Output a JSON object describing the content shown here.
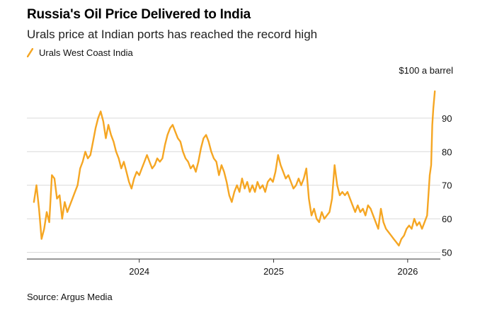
{
  "chart_data": {
    "type": "line",
    "title": "Russia's Oil Price Delivered to India",
    "subtitle": "Urals price at Indian ports has reached the record high",
    "legend": [
      {
        "name": "Urals West Coast India",
        "color": "#f5a623"
      }
    ],
    "source": "Source: Argus Media",
    "annotation": "$100 a barrel",
    "ylim": [
      48,
      102
    ],
    "yticks": [
      50,
      60,
      70,
      80,
      90
    ],
    "ytick_labels": [
      "50",
      "60",
      "70",
      "80",
      "90"
    ],
    "xlim": [
      "2023-03-01",
      "2026-03-31"
    ],
    "xticks": [
      "2024",
      "2025",
      "2026"
    ],
    "grid": true,
    "y_axis_side": "right",
    "series": [
      {
        "name": "Urals West Coast India",
        "color": "#f5a623",
        "points": [
          [
            "2023-03-20",
            65
          ],
          [
            "2023-03-27",
            70
          ],
          [
            "2023-04-03",
            63
          ],
          [
            "2023-04-10",
            54
          ],
          [
            "2023-04-17",
            57
          ],
          [
            "2023-04-24",
            62
          ],
          [
            "2023-05-01",
            59
          ],
          [
            "2023-05-08",
            73
          ],
          [
            "2023-05-15",
            72
          ],
          [
            "2023-05-22",
            66
          ],
          [
            "2023-05-29",
            67
          ],
          [
            "2023-06-05",
            60
          ],
          [
            "2023-06-12",
            65
          ],
          [
            "2023-06-19",
            62
          ],
          [
            "2023-06-26",
            64
          ],
          [
            "2023-07-03",
            66
          ],
          [
            "2023-07-10",
            68
          ],
          [
            "2023-07-17",
            70
          ],
          [
            "2023-07-24",
            75
          ],
          [
            "2023-07-31",
            77
          ],
          [
            "2023-08-07",
            80
          ],
          [
            "2023-08-14",
            78
          ],
          [
            "2023-08-21",
            79
          ],
          [
            "2023-08-28",
            83
          ],
          [
            "2023-09-04",
            87
          ],
          [
            "2023-09-11",
            90
          ],
          [
            "2023-09-18",
            92
          ],
          [
            "2023-09-25",
            89
          ],
          [
            "2023-10-02",
            84
          ],
          [
            "2023-10-09",
            88
          ],
          [
            "2023-10-16",
            85
          ],
          [
            "2023-10-23",
            83
          ],
          [
            "2023-10-30",
            80
          ],
          [
            "2023-11-06",
            78
          ],
          [
            "2023-11-13",
            75
          ],
          [
            "2023-11-20",
            77
          ],
          [
            "2023-11-27",
            74
          ],
          [
            "2023-12-04",
            71
          ],
          [
            "2023-12-11",
            69
          ],
          [
            "2023-12-18",
            72
          ],
          [
            "2023-12-25",
            74
          ],
          [
            "2024-01-01",
            73
          ],
          [
            "2024-01-08",
            75
          ],
          [
            "2024-01-15",
            77
          ],
          [
            "2024-01-22",
            79
          ],
          [
            "2024-01-29",
            77
          ],
          [
            "2024-02-05",
            75
          ],
          [
            "2024-02-12",
            76
          ],
          [
            "2024-02-19",
            78
          ],
          [
            "2024-02-26",
            77
          ],
          [
            "2024-03-04",
            78
          ],
          [
            "2024-03-11",
            82
          ],
          [
            "2024-03-18",
            85
          ],
          [
            "2024-03-25",
            87
          ],
          [
            "2024-04-01",
            88
          ],
          [
            "2024-04-08",
            86
          ],
          [
            "2024-04-15",
            84
          ],
          [
            "2024-04-22",
            83
          ],
          [
            "2024-04-29",
            80
          ],
          [
            "2024-05-06",
            78
          ],
          [
            "2024-05-13",
            77
          ],
          [
            "2024-05-20",
            75
          ],
          [
            "2024-05-27",
            76
          ],
          [
            "2024-06-03",
            74
          ],
          [
            "2024-06-10",
            77
          ],
          [
            "2024-06-17",
            81
          ],
          [
            "2024-06-24",
            84
          ],
          [
            "2024-07-01",
            85
          ],
          [
            "2024-07-08",
            83
          ],
          [
            "2024-07-15",
            80
          ],
          [
            "2024-07-22",
            78
          ],
          [
            "2024-07-29",
            77
          ],
          [
            "2024-08-05",
            73
          ],
          [
            "2024-08-12",
            76
          ],
          [
            "2024-08-19",
            74
          ],
          [
            "2024-08-26",
            71
          ],
          [
            "2024-09-02",
            67
          ],
          [
            "2024-09-09",
            65
          ],
          [
            "2024-09-16",
            68
          ],
          [
            "2024-09-23",
            70
          ],
          [
            "2024-09-30",
            68
          ],
          [
            "2024-10-07",
            72
          ],
          [
            "2024-10-14",
            69
          ],
          [
            "2024-10-21",
            71
          ],
          [
            "2024-10-28",
            68
          ],
          [
            "2024-11-04",
            70
          ],
          [
            "2024-11-11",
            68
          ],
          [
            "2024-11-18",
            71
          ],
          [
            "2024-11-25",
            69
          ],
          [
            "2024-12-02",
            70
          ],
          [
            "2024-12-09",
            68
          ],
          [
            "2024-12-16",
            71
          ],
          [
            "2024-12-23",
            72
          ],
          [
            "2024-12-30",
            71
          ],
          [
            "2025-01-06",
            74
          ],
          [
            "2025-01-13",
            79
          ],
          [
            "2025-01-20",
            76
          ],
          [
            "2025-01-27",
            74
          ],
          [
            "2025-02-03",
            72
          ],
          [
            "2025-02-10",
            73
          ],
          [
            "2025-02-17",
            71
          ],
          [
            "2025-02-24",
            69
          ],
          [
            "2025-03-03",
            70
          ],
          [
            "2025-03-10",
            72
          ],
          [
            "2025-03-17",
            70
          ],
          [
            "2025-03-24",
            72
          ],
          [
            "2025-03-31",
            75
          ],
          [
            "2025-04-07",
            66
          ],
          [
            "2025-04-14",
            61
          ],
          [
            "2025-04-21",
            63
          ],
          [
            "2025-04-28",
            60
          ],
          [
            "2025-05-05",
            59
          ],
          [
            "2025-05-12",
            62
          ],
          [
            "2025-05-19",
            60
          ],
          [
            "2025-05-26",
            61
          ],
          [
            "2025-06-02",
            62
          ],
          [
            "2025-06-09",
            66
          ],
          [
            "2025-06-16",
            76
          ],
          [
            "2025-06-23",
            70
          ],
          [
            "2025-06-30",
            67
          ],
          [
            "2025-07-07",
            68
          ],
          [
            "2025-07-14",
            67
          ],
          [
            "2025-07-21",
            68
          ],
          [
            "2025-07-28",
            66
          ],
          [
            "2025-08-04",
            64
          ],
          [
            "2025-08-11",
            62
          ],
          [
            "2025-08-18",
            64
          ],
          [
            "2025-08-25",
            62
          ],
          [
            "2025-09-01",
            63
          ],
          [
            "2025-09-08",
            61
          ],
          [
            "2025-09-15",
            64
          ],
          [
            "2025-09-22",
            63
          ],
          [
            "2025-09-29",
            61
          ],
          [
            "2025-10-06",
            59
          ],
          [
            "2025-10-13",
            57
          ],
          [
            "2025-10-20",
            63
          ],
          [
            "2025-10-27",
            59
          ],
          [
            "2025-11-03",
            57
          ],
          [
            "2025-11-10",
            56
          ],
          [
            "2025-11-17",
            55
          ],
          [
            "2025-11-24",
            54
          ],
          [
            "2025-12-01",
            53
          ],
          [
            "2025-12-08",
            52
          ],
          [
            "2025-12-15",
            54
          ],
          [
            "2025-12-22",
            55
          ],
          [
            "2025-12-29",
            57
          ],
          [
            "2026-01-05",
            58
          ],
          [
            "2026-01-12",
            57
          ],
          [
            "2026-01-19",
            60
          ],
          [
            "2026-01-26",
            58
          ],
          [
            "2026-02-02",
            59
          ],
          [
            "2026-02-09",
            57
          ],
          [
            "2026-02-16",
            59
          ],
          [
            "2026-02-23",
            61
          ],
          [
            "2026-03-02",
            73
          ],
          [
            "2026-03-06",
            76
          ],
          [
            "2026-03-09",
            88
          ],
          [
            "2026-03-12",
            93
          ],
          [
            "2026-03-16",
            98
          ]
        ]
      }
    ]
  }
}
